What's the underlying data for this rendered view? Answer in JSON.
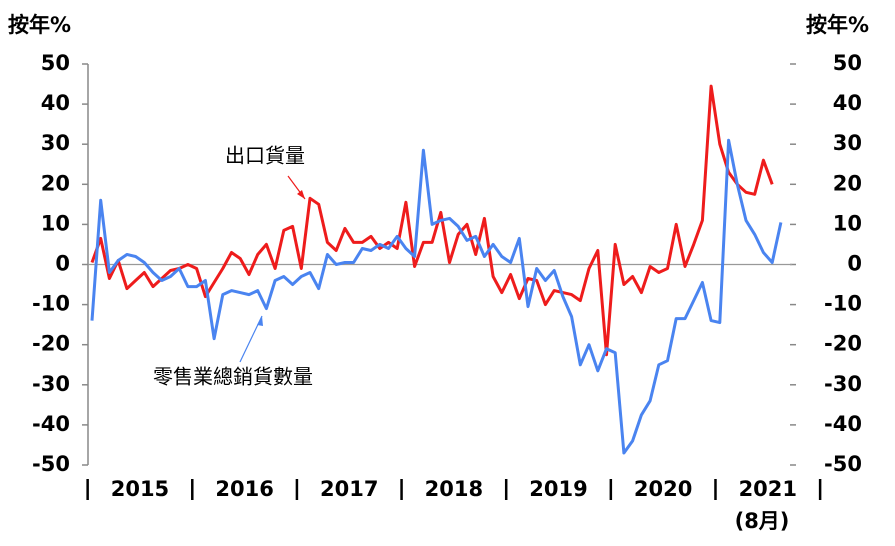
{
  "chart_data": {
    "type": "line",
    "y_label_left": "按年%",
    "y_label_right": "按年%",
    "x_period_labels": [
      "2015",
      "2016",
      "2017",
      "2018",
      "2019",
      "2020",
      "2021"
    ],
    "x_note": "(8月)",
    "ylim": [
      -50,
      50
    ],
    "yticks": [
      -50,
      -40,
      -30,
      -20,
      -10,
      0,
      10,
      20,
      30,
      40,
      50
    ],
    "y2lim": [
      -50,
      50
    ],
    "y2ticks": [
      -50,
      -40,
      -30,
      -20,
      -10,
      0,
      10,
      20,
      30,
      40,
      50
    ],
    "series": [
      {
        "name": "出口貨量",
        "color": "#ee1c1c",
        "values": [
          0.5,
          6.5,
          -3.5,
          1,
          -6,
          -4,
          -2,
          -5.5,
          -3.5,
          -1.5,
          -1,
          0,
          -1,
          -8,
          -4.5,
          -1,
          3,
          1.5,
          -2.5,
          2.5,
          5,
          -1,
          8.5,
          9.5,
          -1,
          16.5,
          15,
          5.5,
          3.5,
          9,
          5.5,
          5.5,
          7,
          4,
          5.5,
          4,
          15.5,
          -0.5,
          5.5,
          5.5,
          13,
          0.5,
          7.5,
          10,
          2.5,
          11.5,
          -3,
          -7,
          -2.5,
          -8.5,
          -3.5,
          -4,
          -10,
          -6.5,
          -7,
          -7.5,
          -9,
          -1,
          3.5,
          -22.5,
          5,
          -5,
          -3,
          -7,
          -0.5,
          -2,
          -1,
          10,
          -0.5,
          5,
          11,
          44.5,
          30,
          23,
          20,
          18,
          17.5,
          26,
          20,
          null
        ]
      },
      {
        "name": "零售業總銷貨數量",
        "color": "#4a84f0",
        "values": [
          -14,
          16,
          -2,
          1,
          2.5,
          2,
          0.5,
          -2,
          -4,
          -3,
          -1,
          -5.5,
          -5.5,
          -4,
          -18.5,
          -7.5,
          -6.5,
          -7,
          -7.5,
          -6.5,
          -11,
          -4,
          -3,
          -5,
          -3,
          -2,
          -6,
          2.5,
          0,
          0.5,
          0.5,
          4,
          3.5,
          5,
          4,
          7,
          4,
          2,
          28.5,
          10,
          11,
          11.5,
          9.5,
          6,
          7,
          2,
          5,
          2,
          0.5,
          6.5,
          -10.5,
          -1,
          -4,
          -1.5,
          -8,
          -13,
          -25,
          -20,
          -26.5,
          -21,
          -22,
          -47,
          -44,
          -37.5,
          -34,
          -25,
          -24,
          -13.5,
          -13.5,
          -9,
          -4.5,
          -14,
          -14.5,
          31,
          20,
          11,
          7.5,
          3,
          0.5,
          10.5
        ]
      }
    ]
  }
}
